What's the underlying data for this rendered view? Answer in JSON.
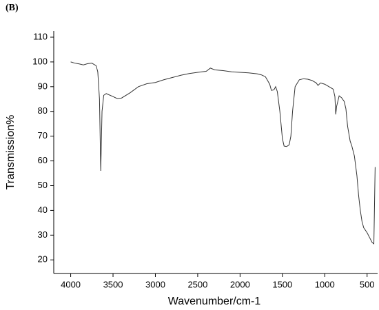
{
  "chart_data": {
    "type": "line",
    "title": "(B)",
    "x_label": "Wavenumber/cm-1",
    "y_label": "Transmission%",
    "color": "#333333",
    "x": [
      4000,
      3950,
      3900,
      3850,
      3800,
      3750,
      3700,
      3680,
      3660,
      3645,
      3630,
      3610,
      3580,
      3500,
      3450,
      3400,
      3300,
      3200,
      3100,
      3000,
      2900,
      2800,
      2700,
      2600,
      2500,
      2400,
      2350,
      2300,
      2200,
      2100,
      2000,
      1900,
      1800,
      1750,
      1700,
      1650,
      1630,
      1600,
      1580,
      1560,
      1530,
      1500,
      1480,
      1450,
      1420,
      1400,
      1380,
      1350,
      1300,
      1250,
      1200,
      1150,
      1100,
      1080,
      1050,
      1000,
      950,
      900,
      880,
      870,
      860,
      830,
      800,
      770,
      750,
      730,
      700,
      680,
      650,
      620,
      600,
      580,
      560,
      540,
      500,
      470,
      440,
      420,
      405
    ],
    "values": [
      100,
      99.5,
      99.2,
      98.8,
      99.3,
      99.5,
      98.5,
      96,
      85,
      56,
      80,
      86.5,
      87.2,
      86,
      85.2,
      85.4,
      87.5,
      90,
      91.2,
      91.7,
      92.8,
      93.7,
      94.6,
      95.3,
      95.8,
      96.2,
      97.5,
      96.8,
      96.5,
      96,
      95.8,
      95.6,
      95.2,
      94.8,
      94,
      91,
      88.5,
      88.7,
      90,
      88,
      80,
      69,
      66,
      65.8,
      66.5,
      70,
      80,
      90,
      92.8,
      93.2,
      93,
      92.5,
      91.5,
      90.5,
      91.5,
      91,
      90,
      89,
      86,
      78.8,
      82,
      86.3,
      85.5,
      84,
      81,
      74,
      68,
      66,
      62,
      54,
      46,
      40,
      35.5,
      33,
      31,
      29,
      27,
      26.5,
      57.5
    ],
    "xlim": [
      4200,
      400
    ],
    "xticks": [
      4000,
      3500,
      3000,
      2500,
      2000,
      1500,
      1000,
      500
    ],
    "ylim": [
      14.5,
      112.5
    ],
    "yticks": [
      20,
      30,
      40,
      50,
      60,
      70,
      80,
      90,
      100,
      110
    ],
    "grid": false
  }
}
